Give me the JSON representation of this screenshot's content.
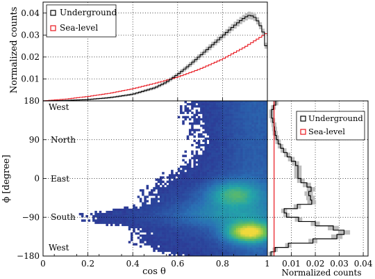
{
  "chart_data": [
    {
      "panel": "top",
      "type": "line",
      "ylabel": "Normalized counts",
      "xlim": [
        0,
        1
      ],
      "ylim": [
        0,
        0.045
      ],
      "yticks": [
        "0.01",
        "0.02",
        "0.03",
        "0.04"
      ],
      "grid": true,
      "legend_position": "top-left",
      "series": [
        {
          "name": "Underground",
          "color": "#000000",
          "x": [
            0.0,
            0.1,
            0.2,
            0.3,
            0.4,
            0.5,
            0.55,
            0.6,
            0.65,
            0.7,
            0.75,
            0.8,
            0.85,
            0.88,
            0.9,
            0.92,
            0.94,
            0.96,
            0.98,
            1.0
          ],
          "values": [
            0.0,
            0.0002,
            0.0006,
            0.0015,
            0.003,
            0.006,
            0.0085,
            0.012,
            0.016,
            0.0205,
            0.025,
            0.0295,
            0.034,
            0.0365,
            0.038,
            0.039,
            0.0385,
            0.036,
            0.032,
            0.022
          ]
        },
        {
          "name": "Sea-level",
          "color": "#e8141c",
          "x": [
            0.0,
            0.1,
            0.2,
            0.3,
            0.4,
            0.5,
            0.6,
            0.7,
            0.8,
            0.9,
            1.0
          ],
          "values": [
            0.0,
            0.0008,
            0.002,
            0.0035,
            0.0055,
            0.008,
            0.0108,
            0.0145,
            0.019,
            0.0245,
            0.031
          ]
        }
      ]
    },
    {
      "panel": "main",
      "type": "heatmap",
      "xlabel": "cos θ",
      "ylabel": "ϕ [degree]",
      "xlim": [
        0,
        1
      ],
      "ylim": [
        -180,
        180
      ],
      "xticks": [
        "0",
        "0.2",
        "0.4",
        "0.6",
        "0.8",
        "1"
      ],
      "yticks": [
        "180",
        "90",
        "0",
        "−90",
        "−180"
      ],
      "annotations": [
        "West",
        "North",
        "East",
        "South",
        "West"
      ],
      "grid": true,
      "colormap": [
        "#2c2f8f",
        "#2a6fb4",
        "#23a5a8",
        "#74c24f",
        "#f0d93b"
      ]
    },
    {
      "panel": "right",
      "type": "line",
      "xlabel": "Normalized counts",
      "xlim": [
        0,
        0.042
      ],
      "xticks": [
        "0",
        "0.01",
        "0.02",
        "0.03",
        "0.04"
      ],
      "grid": true,
      "legend_position": "top-right",
      "series": [
        {
          "name": "Underground",
          "color": "#000000",
          "phi": [
            180,
            170,
            160,
            150,
            140,
            130,
            120,
            110,
            100,
            90,
            80,
            70,
            60,
            50,
            40,
            30,
            20,
            10,
            0,
            -10,
            -20,
            -30,
            -40,
            -50,
            -60,
            -70,
            -80,
            -90,
            -100,
            -110,
            -120,
            -130,
            -140,
            -150,
            -160,
            -170,
            -180
          ],
          "values": [
            0.004,
            0.003,
            0.002,
            0.0015,
            0.002,
            0.0025,
            0.003,
            0.003,
            0.0035,
            0.004,
            0.005,
            0.006,
            0.0075,
            0.009,
            0.011,
            0.0125,
            0.013,
            0.0125,
            0.013,
            0.015,
            0.018,
            0.0185,
            0.016,
            0.02,
            0.017,
            0.008,
            0.006,
            0.01,
            0.016,
            0.024,
            0.031,
            0.033,
            0.025,
            0.013,
            0.0045,
            0.002,
            0.001
          ]
        },
        {
          "name": "Sea-level",
          "color": "#e8141c",
          "phi": [
            180,
            -180
          ],
          "values": [
            0.0028,
            0.0028
          ]
        }
      ]
    }
  ]
}
